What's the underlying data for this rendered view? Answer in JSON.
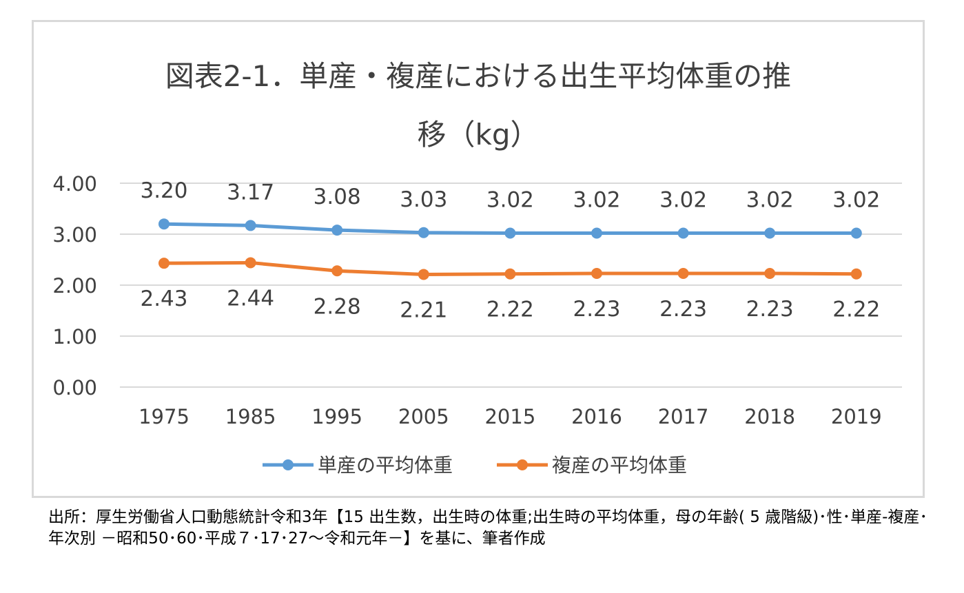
{
  "chart_data": {
    "type": "line",
    "title_line1": "図表2-1．単産・複産における出生平均体重の推",
    "title_line2": "移（kg）",
    "categories": [
      "1975",
      "1985",
      "1995",
      "2005",
      "2015",
      "2016",
      "2017",
      "2018",
      "2019"
    ],
    "y_ticks": [
      "4.00",
      "3.00",
      "2.00",
      "1.00",
      "0.00"
    ],
    "ylim": [
      0,
      4
    ],
    "grid": true,
    "legend_position": "bottom",
    "series": [
      {
        "name": "単産の平均体重",
        "color": "#5b9bd5",
        "values": [
          3.2,
          3.17,
          3.08,
          3.03,
          3.02,
          3.02,
          3.02,
          3.02,
          3.02
        ],
        "labels": [
          "3.20",
          "3.17",
          "3.08",
          "3.03",
          "3.02",
          "3.02",
          "3.02",
          "3.02",
          "3.02"
        ]
      },
      {
        "name": "複産の平均体重",
        "color": "#ed7d31",
        "values": [
          2.43,
          2.44,
          2.28,
          2.21,
          2.22,
          2.23,
          2.23,
          2.23,
          2.22
        ],
        "labels": [
          "2.43",
          "2.44",
          "2.28",
          "2.21",
          "2.22",
          "2.23",
          "2.23",
          "2.23",
          "2.22"
        ]
      }
    ]
  },
  "source_note": "出所：厚生労働省人口動態統計令和3年【15 出生数，出生時の体重;出生時の平均体重，母の年齢( 5 歳階級)･性･単産-複産･年次別 －昭和50･60･平成７･17･27～令和元年－】を基に、筆者作成"
}
